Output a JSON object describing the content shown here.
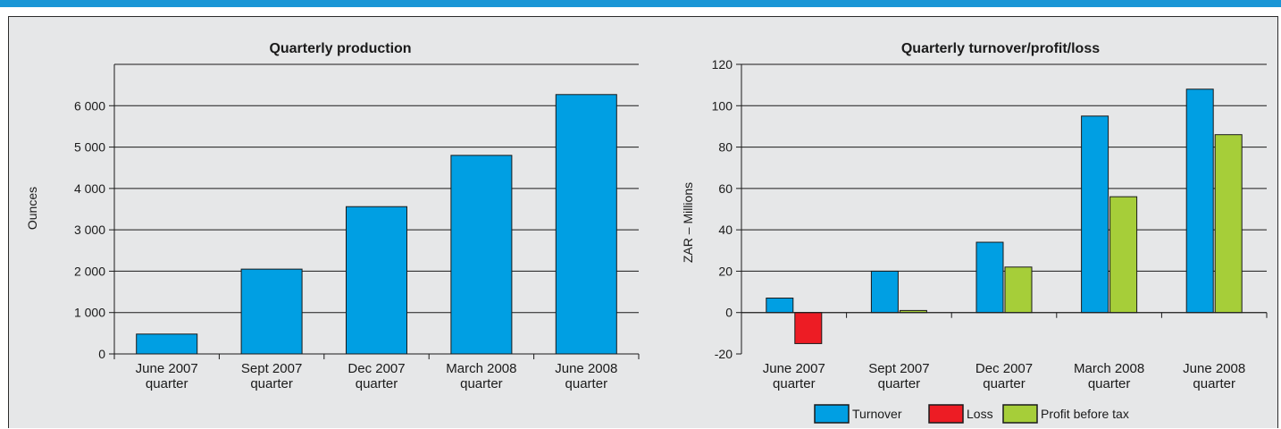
{
  "colors": {
    "top_bar": "#1a96d6",
    "panel_bg": "#e6e7e8",
    "turnover": "#009fe3",
    "loss": "#ed1c24",
    "profit": "#a6ce39",
    "production": "#009fe3"
  },
  "chart_data": [
    {
      "type": "bar",
      "title": "Quarterly production",
      "ylabel": "Ounces",
      "xlabel": "",
      "categories": [
        [
          "June 2007",
          "quarter"
        ],
        [
          "Sept 2007",
          "quarter"
        ],
        [
          "Dec 2007",
          "quarter"
        ],
        [
          "March 2008",
          "quarter"
        ],
        [
          "June 2008",
          "quarter"
        ]
      ],
      "series": [
        {
          "values": [
            480,
            2050,
            3560,
            4800,
            6270
          ]
        }
      ],
      "ylim": [
        0,
        7000
      ],
      "yticks": [
        0,
        1000,
        2000,
        3000,
        4000,
        5000,
        6000
      ],
      "ytick_labels": [
        "0",
        "1 000",
        "2 000",
        "3 000",
        "4 000",
        "5 000",
        "6 000"
      ],
      "grid": true,
      "legend": "none"
    },
    {
      "type": "bar",
      "title": "Quarterly turnover/profit/loss",
      "ylabel": "ZAR – Millions",
      "xlabel": "",
      "categories": [
        [
          "June 2007",
          "quarter"
        ],
        [
          "Sept 2007",
          "quarter"
        ],
        [
          "Dec 2007",
          "quarter"
        ],
        [
          "March 2008",
          "quarter"
        ],
        [
          "June 2008",
          "quarter"
        ]
      ],
      "series": [
        {
          "name": "Turnover",
          "values": [
            7,
            20,
            34,
            95,
            108
          ]
        },
        {
          "name": "Loss",
          "values": [
            -15,
            null,
            null,
            null,
            null
          ]
        },
        {
          "name": "Profit before tax",
          "values": [
            null,
            1,
            22,
            56,
            86
          ]
        }
      ],
      "ylim": [
        -20,
        120
      ],
      "yticks": [
        -20,
        0,
        20,
        40,
        60,
        80,
        100,
        120
      ],
      "ytick_labels": [
        "-20",
        "0",
        "20",
        "40",
        "60",
        "80",
        "100",
        "120"
      ],
      "grid": true,
      "legend": "bottom"
    }
  ]
}
